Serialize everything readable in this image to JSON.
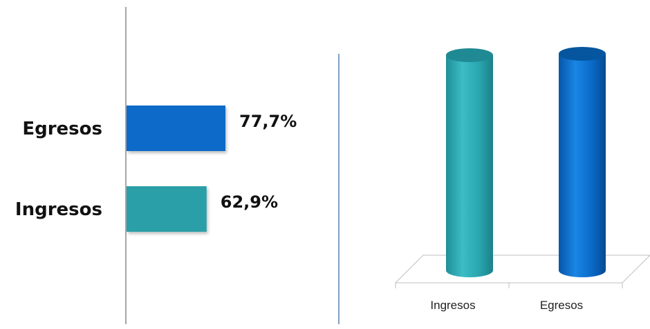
{
  "chart_data": [
    {
      "type": "bar",
      "orientation": "horizontal",
      "categories": [
        "Egresos",
        "Ingresos"
      ],
      "values": [
        77.7,
        62.9
      ],
      "value_labels": [
        "77,7%",
        "62,9%"
      ],
      "unit": "%",
      "colors": [
        "#0A6AC8",
        "#2C9FA8"
      ],
      "grid": false,
      "legend": "none"
    },
    {
      "type": "bar",
      "style": "3d-cylinder",
      "categories": [
        "Ingresos",
        "Egresos"
      ],
      "colors": [
        "#2AA6B0",
        "#0A6AC8"
      ],
      "grid": false,
      "legend": "none"
    }
  ]
}
